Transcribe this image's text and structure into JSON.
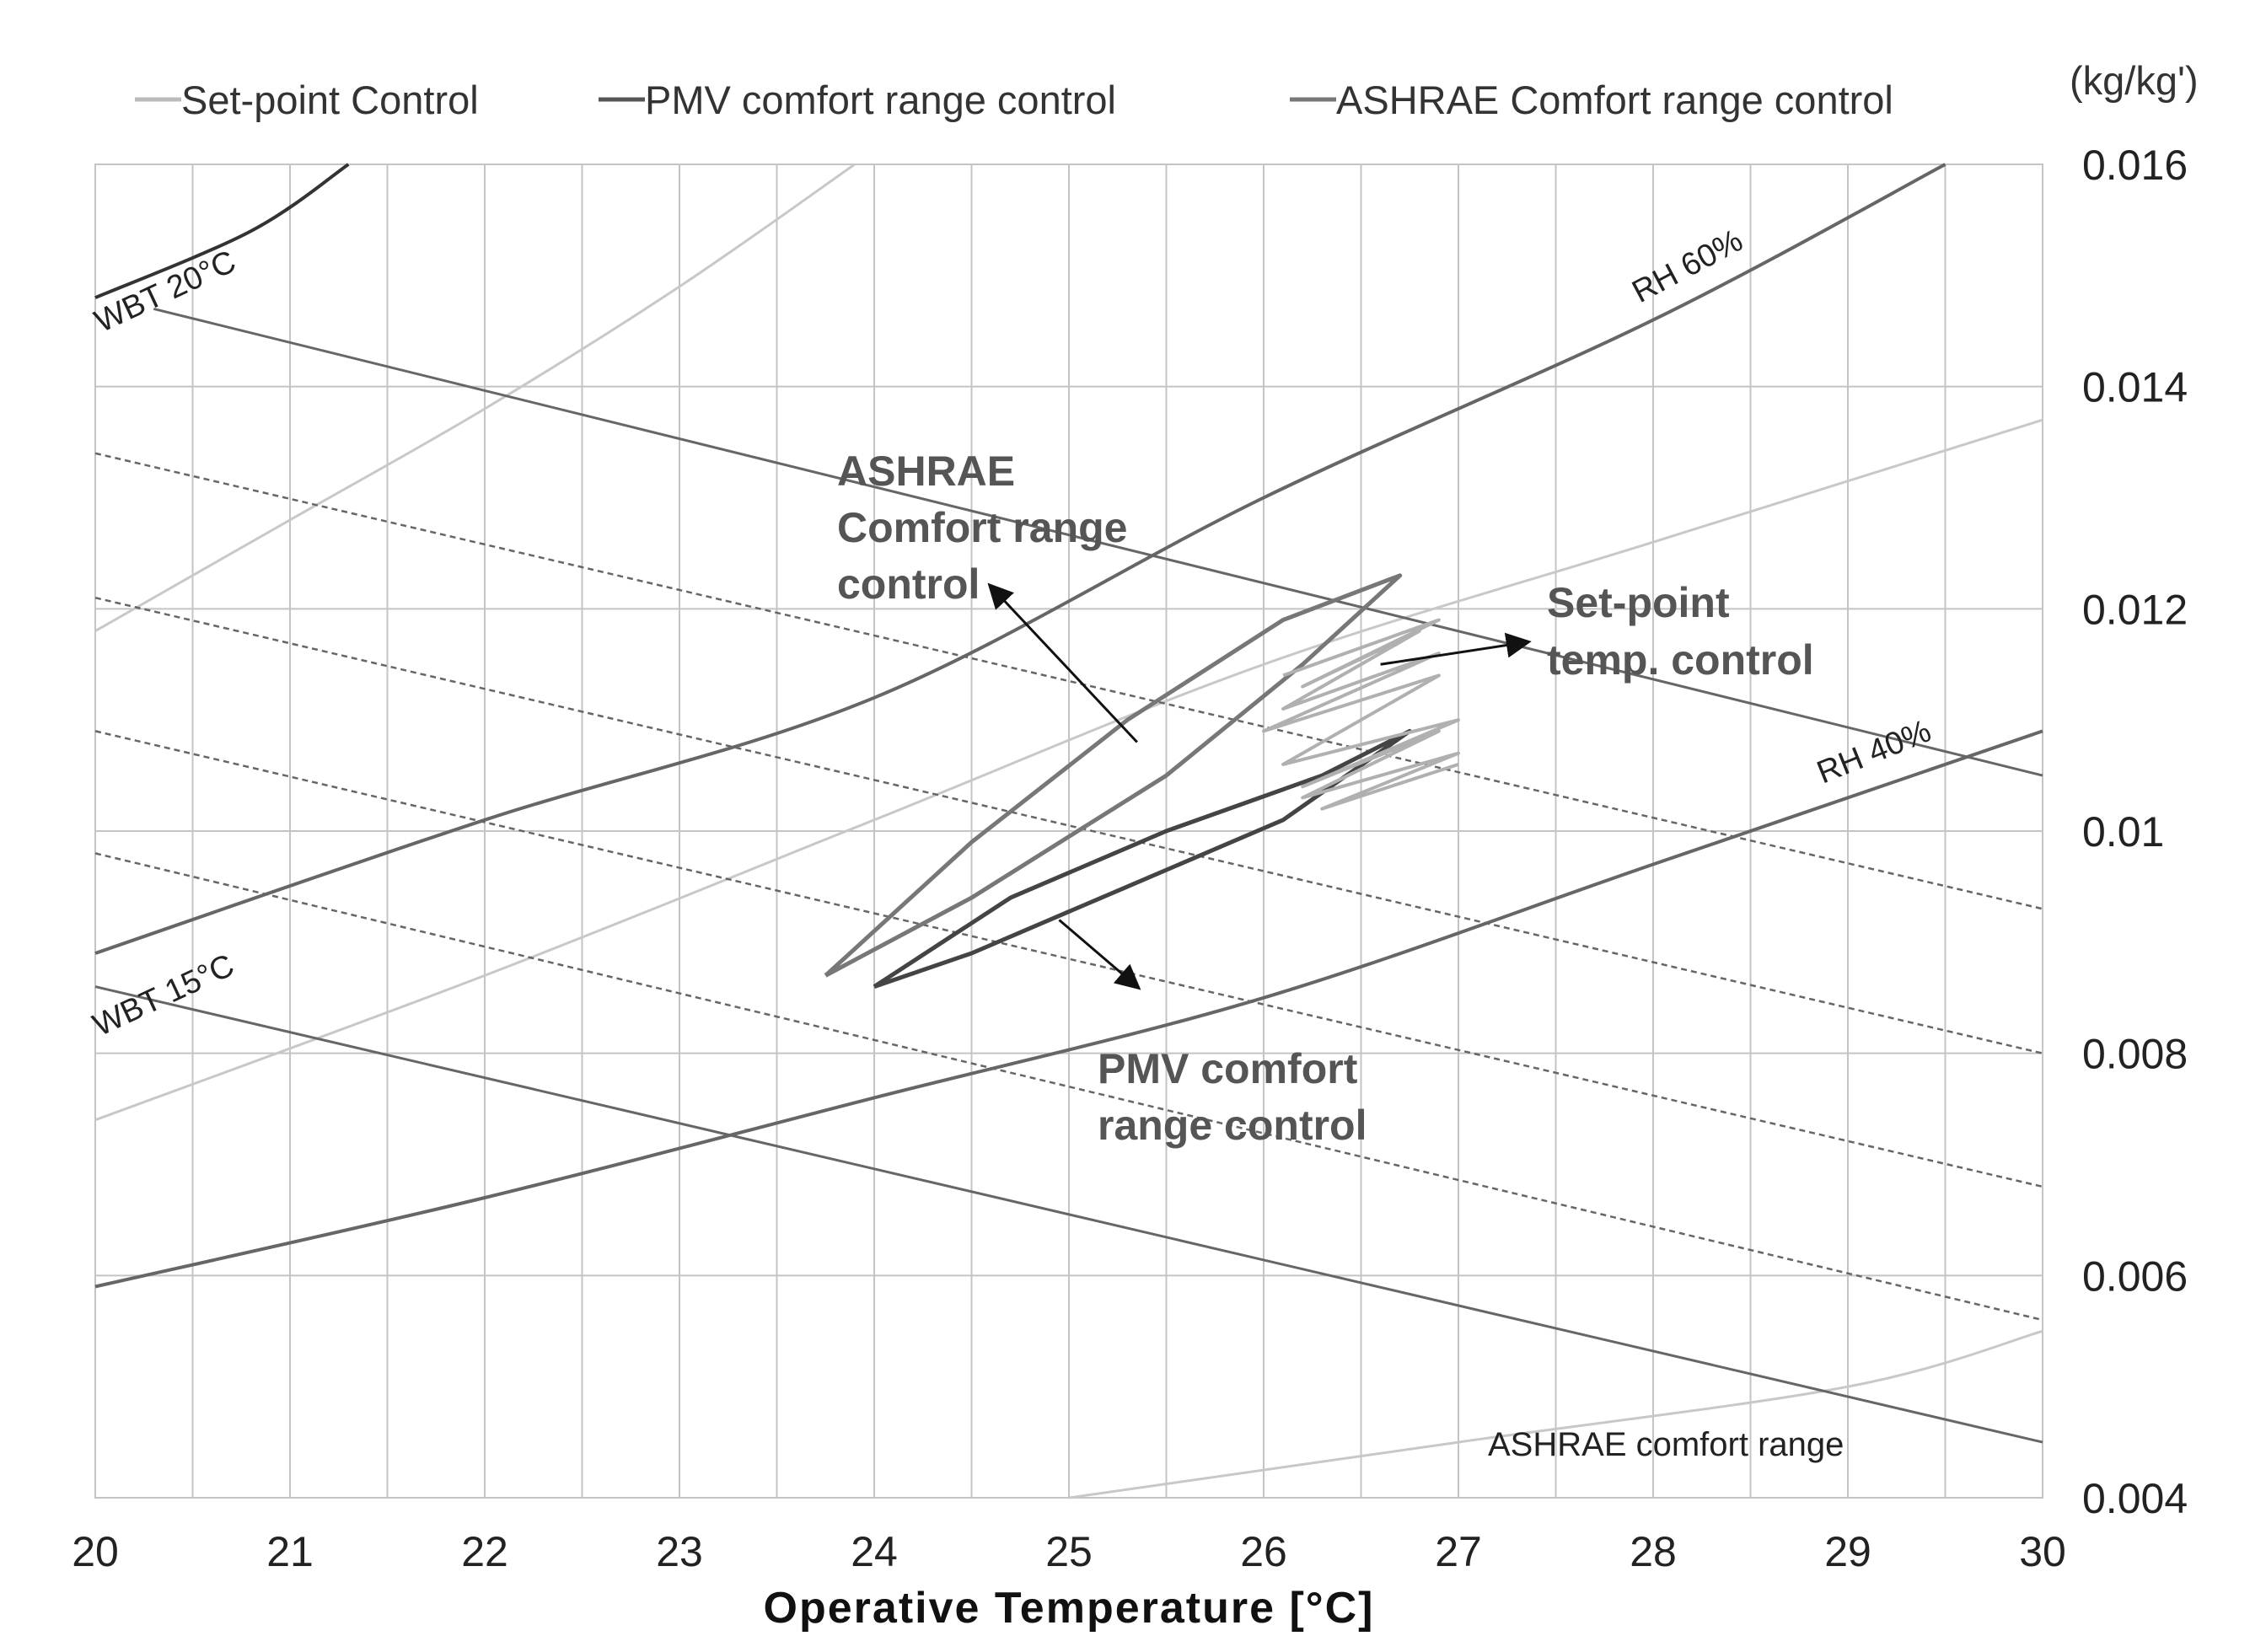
{
  "chart_data": {
    "type": "line",
    "title": "",
    "xlabel": "Operative Temperature [°C]",
    "ylabel": "(kg/kg')",
    "xlim": [
      20,
      30
    ],
    "ylim": [
      0.004,
      0.016
    ],
    "x_ticks": [
      "20",
      "21",
      "22",
      "23",
      "24",
      "25",
      "26",
      "27",
      "28",
      "29",
      "30"
    ],
    "y_ticks": [
      "0.004",
      "0.006",
      "0.008",
      "0.01",
      "0.012",
      "0.014",
      "0.016"
    ],
    "legend": [
      {
        "name": "Set-point Control",
        "color": "#bbbbbb"
      },
      {
        "name": "PMV comfort range control",
        "color": "#555555"
      },
      {
        "name": "ASHRAE Comfort range control",
        "color": "#777777"
      }
    ],
    "rh_curves": [
      {
        "label": "RH 60%",
        "points": [
          [
            20,
            0.0089
          ],
          [
            22,
            0.0101
          ],
          [
            24,
            0.0112
          ],
          [
            26,
            0.013
          ],
          [
            28,
            0.0146
          ],
          [
            29.5,
            0.016
          ]
        ]
      },
      {
        "label": "RH 40%",
        "points": [
          [
            20,
            0.0059
          ],
          [
            22,
            0.0067
          ],
          [
            24,
            0.0076
          ],
          [
            26,
            0.0085
          ],
          [
            28,
            0.0097
          ],
          [
            30,
            0.0109
          ]
        ]
      }
    ],
    "light_curves": [
      {
        "points": [
          [
            20,
            0.0118
          ],
          [
            21,
            0.0128
          ],
          [
            22,
            0.0138
          ],
          [
            23,
            0.0149
          ],
          [
            23.9,
            0.016
          ]
        ]
      },
      {
        "points": [
          [
            20,
            0.0074
          ],
          [
            22,
            0.0087
          ],
          [
            24,
            0.0101
          ],
          [
            26,
            0.0115
          ],
          [
            28,
            0.0126
          ],
          [
            30,
            0.0137
          ]
        ]
      },
      {
        "points": [
          [
            25,
            0.004
          ],
          [
            27,
            0.0045
          ],
          [
            29,
            0.005
          ],
          [
            30,
            0.0055
          ]
        ]
      }
    ],
    "wbt_lines": [
      {
        "label": "WBT 20°C",
        "points": [
          [
            20.3,
            0.0147
          ],
          [
            30,
            0.0105
          ]
        ]
      },
      {
        "label": "WBT 15°C",
        "points": [
          [
            20,
            0.0086
          ],
          [
            30,
            0.0045
          ]
        ]
      }
    ],
    "wbt_top_curve": {
      "points": [
        [
          20,
          0.0148
        ],
        [
          20.8,
          0.0154
        ],
        [
          21.3,
          0.016
        ]
      ]
    },
    "dashed_lines": [
      {
        "points": [
          [
            20,
            0.0134
          ],
          [
            30,
            0.0093
          ]
        ]
      },
      {
        "points": [
          [
            20,
            0.0121
          ],
          [
            30,
            0.008
          ]
        ]
      },
      {
        "points": [
          [
            20,
            0.0109
          ],
          [
            30,
            0.0068
          ]
        ]
      },
      {
        "points": [
          [
            20,
            0.0098
          ],
          [
            30,
            0.0056
          ]
        ]
      }
    ],
    "series": [
      {
        "name": "ASHRAE Comfort range control",
        "points": [
          [
            23.75,
            0.0087
          ],
          [
            24.5,
            0.0099
          ],
          [
            25.3,
            0.011
          ],
          [
            26.1,
            0.0119
          ],
          [
            26.7,
            0.0123
          ],
          [
            26.2,
            0.0115
          ],
          [
            25.5,
            0.0105
          ],
          [
            24.5,
            0.0094
          ],
          [
            23.75,
            0.0087
          ]
        ]
      },
      {
        "name": "PMV comfort range control",
        "points": [
          [
            24.0,
            0.0086
          ],
          [
            24.7,
            0.0094
          ],
          [
            25.5,
            0.01
          ],
          [
            26.3,
            0.0105
          ],
          [
            26.75,
            0.0109
          ],
          [
            26.1,
            0.0101
          ],
          [
            25.3,
            0.0095
          ],
          [
            24.5,
            0.0089
          ],
          [
            24.0,
            0.0086
          ]
        ]
      },
      {
        "name": "Set-point Control",
        "points": [
          [
            26.1,
            0.0114
          ],
          [
            26.9,
            0.0119
          ],
          [
            26.2,
            0.0113
          ],
          [
            26.8,
            0.0118
          ],
          [
            26.1,
            0.0111
          ],
          [
            26.9,
            0.0116
          ],
          [
            26.0,
            0.0109
          ],
          [
            26.9,
            0.0114
          ],
          [
            26.1,
            0.0106
          ],
          [
            27.0,
            0.011
          ],
          [
            26.2,
            0.0104
          ],
          [
            26.9,
            0.0109
          ],
          [
            26.2,
            0.0103
          ],
          [
            27.0,
            0.0107
          ],
          [
            26.3,
            0.0102
          ],
          [
            27.0,
            0.0106
          ]
        ]
      }
    ],
    "annotations": [
      {
        "lines": [
          "ASHRAE",
          "Comfort range",
          "control"
        ],
        "at": [
          23.8,
          0.0123
        ],
        "arrow_from": [
          25.35,
          0.0108
        ],
        "arrow_to": [
          24.6,
          0.0122
        ]
      },
      {
        "lines": [
          "Set-point",
          "temp. control"
        ],
        "at": [
          27.45,
          0.0118
        ],
        "arrow_from": [
          26.6,
          0.0115
        ],
        "arrow_to": [
          27.35,
          0.0117
        ]
      },
      {
        "lines": [
          "PMV comfort",
          "range control"
        ],
        "at": [
          25.2,
          0.0081
        ],
        "arrow_from": [
          24.95,
          0.0092
        ],
        "arrow_to": [
          25.35,
          0.0086
        ]
      }
    ],
    "region_label": "ASHRAE comfort range",
    "curve_labels": [
      "WBT 20°C",
      "WBT 15°C",
      "RH 60%",
      "RH 40%"
    ]
  }
}
